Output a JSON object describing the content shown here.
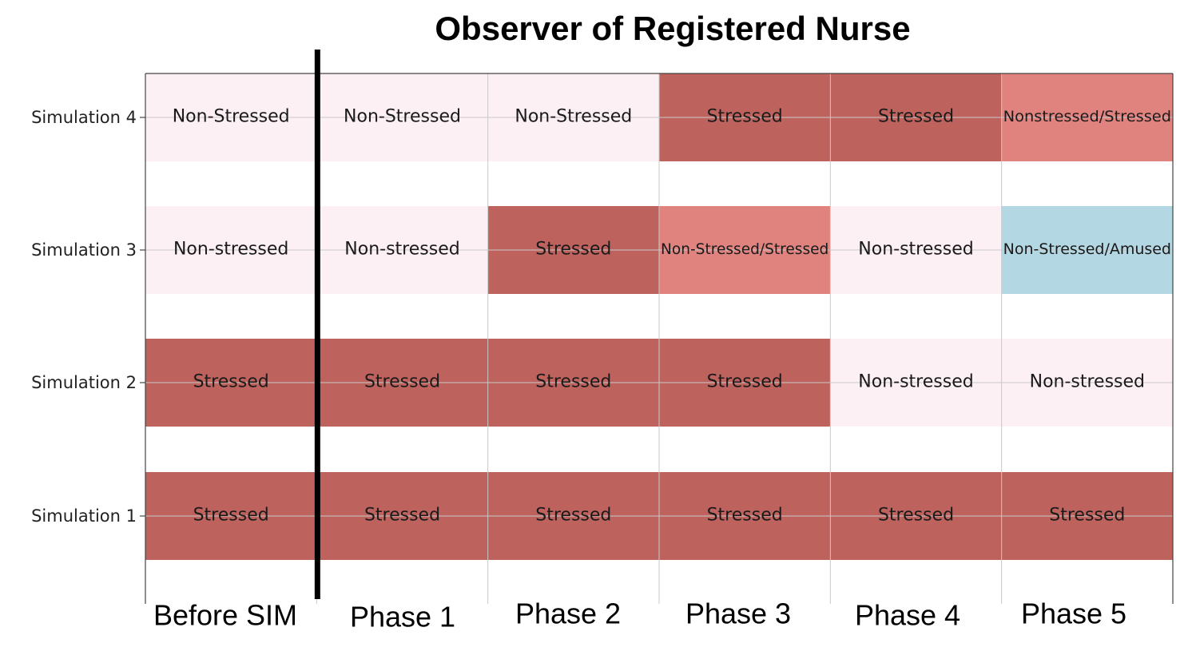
{
  "chart_data": {
    "type": "heatmap",
    "title": "Observer of Registered Nurse",
    "x_categories": [
      "Before SIM",
      "Phase 1",
      "Phase 2",
      "Phase 3",
      "Phase 4",
      "Phase 5"
    ],
    "y_categories": [
      "Simulation 1",
      "Simulation 2",
      "Simulation 3",
      "Simulation 4"
    ],
    "cells": [
      [
        "Stressed",
        "Stressed",
        "Stressed",
        "Stressed",
        "Stressed",
        "Stressed"
      ],
      [
        "Stressed",
        "Stressed",
        "Stressed",
        "Stressed",
        "Non-stressed",
        "Non-stressed"
      ],
      [
        "Non-stressed",
        "Non-stressed",
        "Stressed",
        "Non-Stressed/Stressed",
        "Non-stressed",
        "Non-Stressed/Amused"
      ],
      [
        "Non-Stressed",
        "Non-Stressed",
        "Non-Stressed",
        "Stressed",
        "Stressed",
        "Nonstressed/Stressed"
      ]
    ],
    "color_map": {
      "stressed": "#be625e",
      "mixed-stressed": "#e0827e",
      "non-stressed": "#fcf0f4",
      "amused": "#b3d7e3"
    },
    "grid": true,
    "divider_after_category": "Before SIM"
  }
}
